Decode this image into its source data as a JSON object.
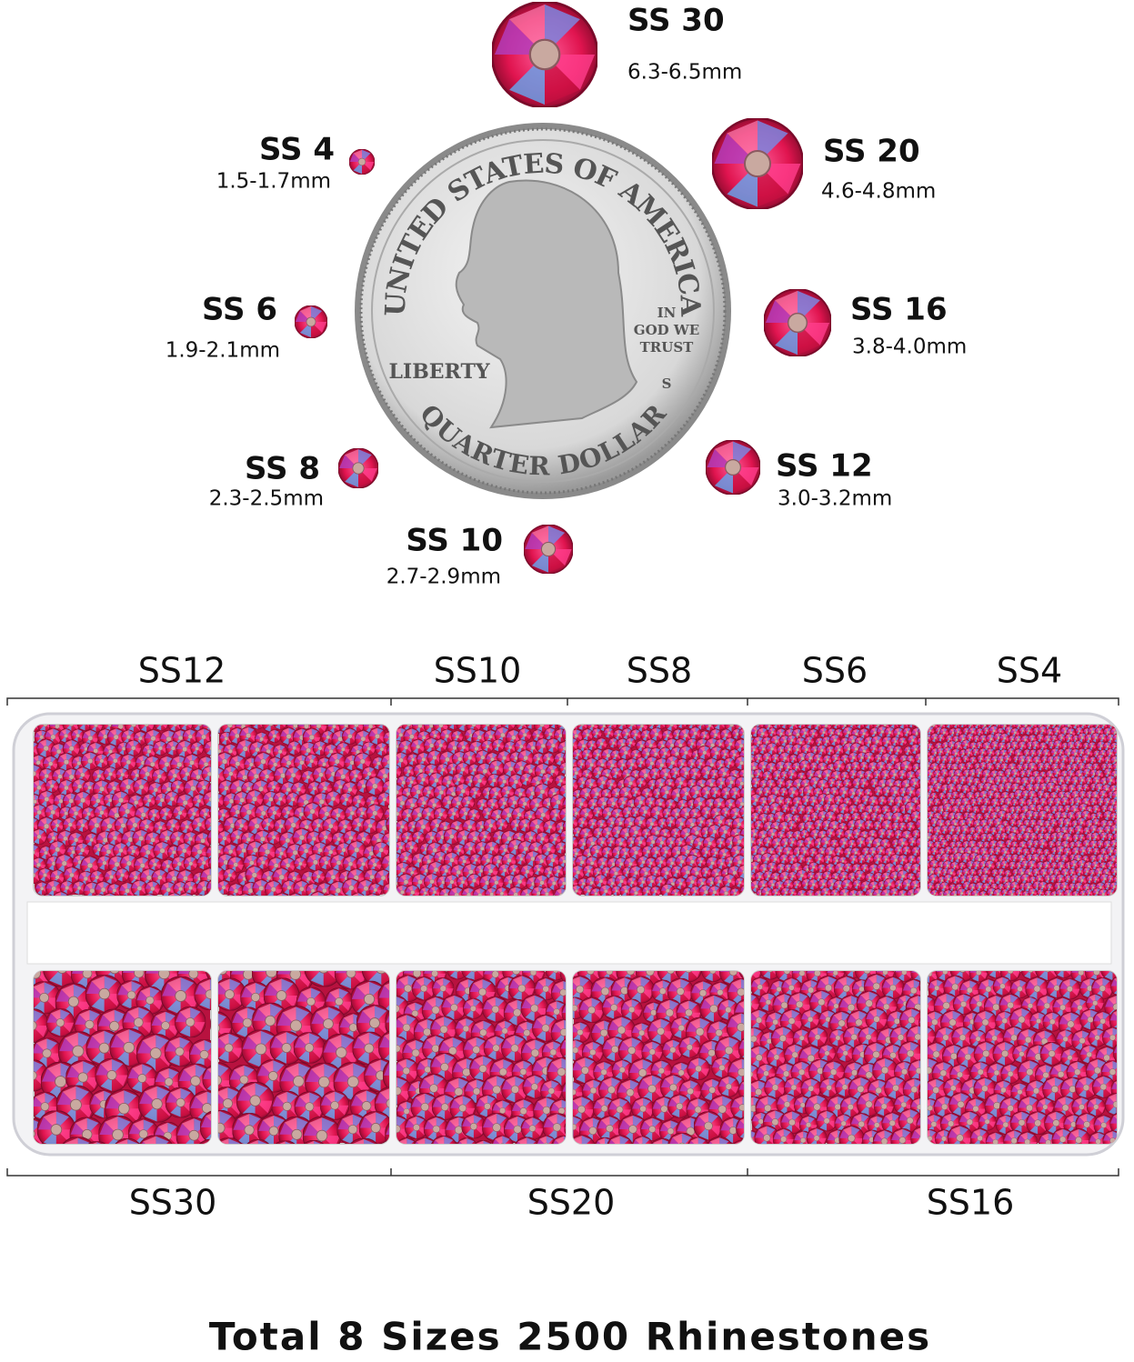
{
  "sizes": [
    {
      "label": "SS 30",
      "size": "6.3-6.5mm"
    },
    {
      "label": "SS 20",
      "size": "4.6-4.8mm"
    },
    {
      "label": "SS 16",
      "size": "3.8-4.0mm"
    },
    {
      "label": "SS 12",
      "size": "3.0-3.2mm"
    },
    {
      "label": "SS 10",
      "size": "2.7-2.9mm"
    },
    {
      "label": "SS 8",
      "size": "2.3-2.5mm"
    },
    {
      "label": "SS 6",
      "size": "1.9-2.1mm"
    },
    {
      "label": "SS 4",
      "size": "1.5-1.7mm"
    }
  ],
  "coin": {
    "top_legend": "UNITED STATES OF AMERICA",
    "motto": [
      "IN",
      "GOD WE",
      "TRUST"
    ],
    "liberty": "LIBERTY",
    "mint": "S",
    "denomination": "QUARTER DOLLAR"
  },
  "tray": {
    "top_labels": [
      "SS12",
      "SS10",
      "SS8",
      "SS6",
      "SS4"
    ],
    "bottom_labels": [
      "SS30",
      "SS20",
      "SS16"
    ]
  },
  "footer": "Total 8 Sizes 2500 Rhinestones"
}
